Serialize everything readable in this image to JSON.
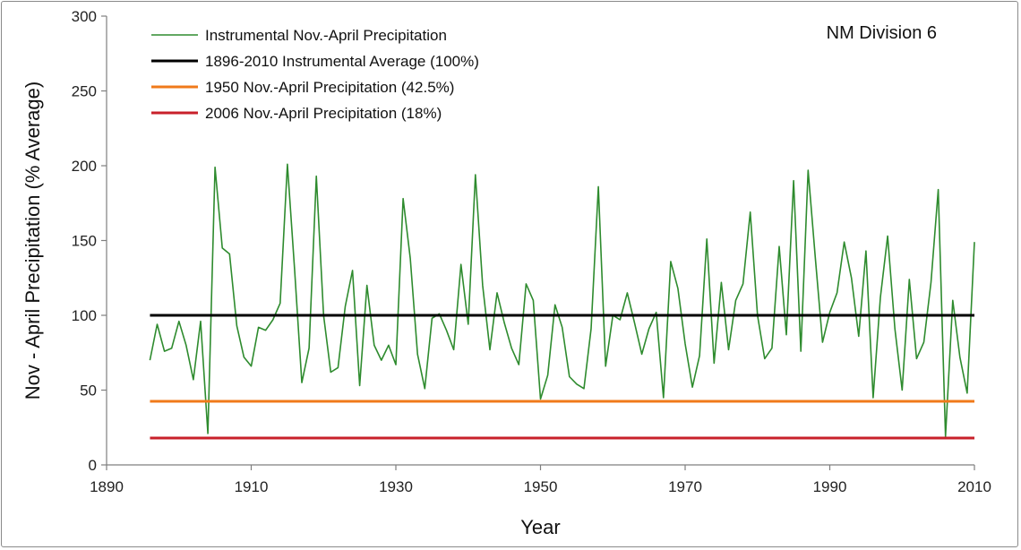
{
  "chart_data": {
    "type": "line",
    "title": "",
    "annotation": "NM Division 6",
    "xlabel": "Year",
    "ylabel": "Nov - April Precipitation (% Average)",
    "xlim": [
      1890,
      2010
    ],
    "ylim": [
      0,
      300
    ],
    "xticks": [
      1890,
      1910,
      1930,
      1950,
      1970,
      1990,
      2010
    ],
    "yticks": [
      0,
      50,
      100,
      150,
      200,
      250,
      300
    ],
    "grid": false,
    "legend_position": "top-left",
    "series": [
      {
        "name": "Instrumental Nov.-April Precipitation",
        "color": "#2e8b2e",
        "kind": "line",
        "x": [
          1896,
          1897,
          1898,
          1899,
          1900,
          1901,
          1902,
          1903,
          1904,
          1905,
          1906,
          1907,
          1908,
          1909,
          1910,
          1911,
          1912,
          1913,
          1914,
          1915,
          1916,
          1917,
          1918,
          1919,
          1920,
          1921,
          1922,
          1923,
          1924,
          1925,
          1926,
          1927,
          1928,
          1929,
          1930,
          1931,
          1932,
          1933,
          1934,
          1935,
          1936,
          1937,
          1938,
          1939,
          1940,
          1941,
          1942,
          1943,
          1944,
          1945,
          1946,
          1947,
          1948,
          1949,
          1950,
          1951,
          1952,
          1953,
          1954,
          1955,
          1956,
          1957,
          1958,
          1959,
          1960,
          1961,
          1962,
          1963,
          1964,
          1965,
          1966,
          1967,
          1968,
          1969,
          1970,
          1971,
          1972,
          1973,
          1974,
          1975,
          1976,
          1977,
          1978,
          1979,
          1980,
          1981,
          1982,
          1983,
          1984,
          1985,
          1986,
          1987,
          1988,
          1989,
          1990,
          1991,
          1992,
          1993,
          1994,
          1995,
          1996,
          1997,
          1998,
          1999,
          2000,
          2001,
          2002,
          2003,
          2004,
          2005,
          2006,
          2007,
          2008,
          2009,
          2010
        ],
        "y": [
          70,
          94,
          76,
          78,
          96,
          80,
          57,
          96,
          21,
          199,
          145,
          141,
          93,
          72,
          66,
          92,
          90,
          97,
          108,
          201,
          130,
          55,
          78,
          193,
          100,
          62,
          65,
          106,
          130,
          53,
          120,
          80,
          70,
          80,
          67,
          178,
          138,
          74,
          51,
          98,
          101,
          90,
          77,
          134,
          94,
          194,
          120,
          77,
          115,
          95,
          78,
          67,
          121,
          110,
          44,
          60,
          107,
          92,
          59,
          54,
          51,
          91,
          186,
          66,
          100,
          97,
          115,
          95,
          74,
          91,
          102,
          45,
          136,
          118,
          81,
          52,
          73,
          151,
          68,
          122,
          77,
          110,
          121,
          169,
          100,
          71,
          78,
          146,
          87,
          190,
          76,
          197,
          138,
          82,
          102,
          115,
          149,
          125,
          86,
          143,
          45,
          112,
          153,
          91,
          50,
          124,
          71,
          82,
          122,
          184,
          19,
          110,
          72,
          48,
          149
        ]
      },
      {
        "name": "1896-2010 Instrumental Average (100%)",
        "color": "#000000",
        "kind": "hline",
        "value": 100,
        "x_range": [
          1896,
          2010
        ]
      },
      {
        "name": "1950 Nov.-April Precipitation (42.5%)",
        "color": "#f07a1a",
        "kind": "hline",
        "value": 42.5,
        "x_range": [
          1896,
          2010
        ]
      },
      {
        "name": "2006 Nov.-April Precipitation (18%)",
        "color": "#c8202a",
        "kind": "hline",
        "value": 18,
        "x_range": [
          1896,
          2010
        ]
      }
    ]
  }
}
